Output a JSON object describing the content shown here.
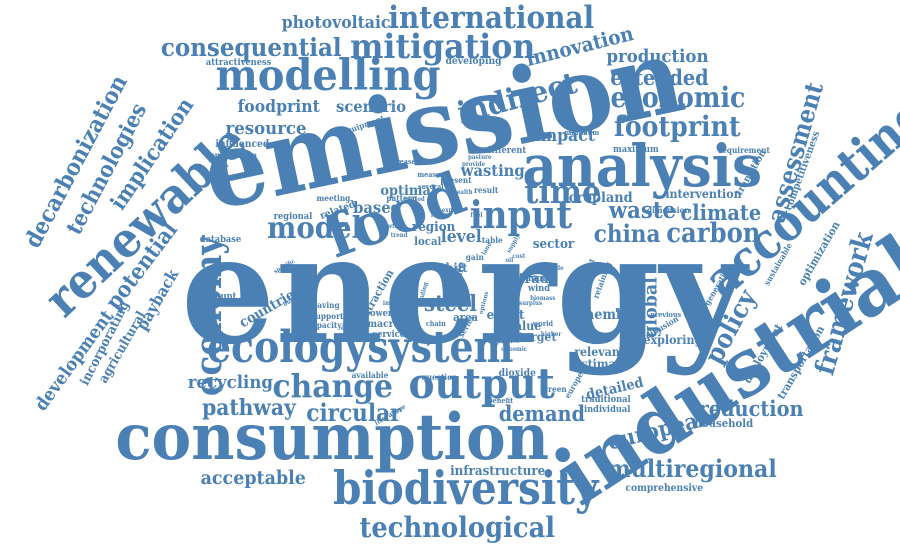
{
  "accent_color": "#4a80b4",
  "background_color": "#ffffff",
  "words": {
    "energy": "energy",
    "emission": "emission",
    "consumption": "consumption",
    "industrial": "industrial",
    "analysis": "analysis",
    "ecologysystem": "ecologysystem",
    "output": "output",
    "biodiversity": "biodiversity",
    "food": "food",
    "modelling": "modelling",
    "renewable": "renewable",
    "accounting": "accounting",
    "international": "international",
    "mitigation": "mitigation",
    "consequential": "consequential",
    "technological": "technological",
    "economy": "economy",
    "input": "input",
    "time": "time",
    "change": "change",
    "economic": "economic",
    "footprint": "footprint",
    "framework": "framework",
    "assessment": "assessment",
    "china": "china",
    "carbon": "carbon",
    "waste": "waste",
    "climate": "climate",
    "model": "model",
    "policy": "policy",
    "european": "european",
    "multiregional": "multiregional",
    "demand": "demand",
    "reduction": "reduction",
    "pathway": "pathway",
    "circular": "circular",
    "acceptable": "acceptable",
    "indirect": "indirect",
    "extended": "extended",
    "production": "production",
    "innovation": "innovation",
    "photovoltaic": "photovoltaic",
    "decarbonization": "decarbonization",
    "technologies": "technologies",
    "implication": "implication",
    "potential": "potential",
    "development": "development",
    "recycling": "recycling",
    "resource": "resource",
    "foodprint": "foodprint",
    "scenario": "scenario",
    "impact": "impact",
    "steel": "steel",
    "level": "level",
    "global": "global",
    "infrastructure": "infrastructure",
    "detailed": "detailed",
    "based": "based",
    "optimal": "optimal",
    "wasting": "wasting",
    "cropland": "cropland",
    "sector": "sector",
    "trade": "trade",
    "cycle": "cycle",
    "member": "member",
    "payback": "payback",
    "agricultural": "agricultural",
    "incorporating": "incorporating",
    "household": "household",
    "comprehensive": "comprehensive",
    "intervention": "intervention",
    "transition": "transition",
    "competitiveness": "competitiveness",
    "optimization": "optimization",
    "deployment": "deployment",
    "transportation": "transportation",
    "relevant": "relevant",
    "estimate": "estimate",
    "exploring": "exploring",
    "traditional": "traditional",
    "individual": "individual",
    "area": "area",
    "effect": "effect",
    "value": "value",
    "target": "target",
    "dioxide": "dioxide",
    "question": "question",
    "available": "available",
    "macro": "macro",
    "service": "service",
    "power": "power",
    "capacity": "capacity",
    "support": "support",
    "saving": "saving",
    "countrie": "countrie",
    "account": "account",
    "extraction": "extraction",
    "region": "region",
    "local": "local",
    "shift": "shift",
    "regional": "regional",
    "related": "related",
    "meeting": "meeting",
    "pattern": "pattern",
    "present": "present",
    "result": "result",
    "different": "different",
    "maximum": "maximum",
    "minimum": "minimum",
    "requirement": "requirement",
    "dimension": "dimension",
    "attractiveness": "attractiveness",
    "developing": "developing",
    "influenced": "influenced",
    "combination": "combination",
    "equipment": "equipment",
    "database": "database",
    "increase": "increase",
    "table": "table",
    "more": "more",
    "wind": "wind",
    "gain": "gain",
    "life": "life",
    "several": "several",
    "measure": "measure",
    "sustainable": "sustainable",
    "generation": "generation",
    "previous": "previous",
    "retaining": "retaining",
    "product": "product",
    "world": "world",
    "europe": "europe",
    "green": "green",
    "series": "series",
    "literature": "literature",
    "benefit": "benefit",
    "diffusion": "diffusion",
    "material": "material",
    "provide": "provide",
    "scale": "scale",
    "higher": "higher",
    "chain": "chain",
    "specific": "specific",
    "building": "building",
    "economy_small": "economy",
    "conomic": "conomic",
    "oil": "oil",
    "land": "land",
    "using": "using",
    "pasture": "pasture",
    "future": "future",
    "supply": "supply",
    "options": "options",
    "finding": "finding",
    "domestic": "domestic",
    "industry": "industry",
    "mode": "mode",
    "period": "period",
    "growth": "growth",
    "trend": "trend",
    "flow": "flow",
    "surplus": "surplus",
    "biomass": "biomass",
    "strategies": "strategies",
    "import": "import",
    "export": "export",
    "fuel": "fuel",
    "cost": "cost",
    "health": "health"
  }
}
